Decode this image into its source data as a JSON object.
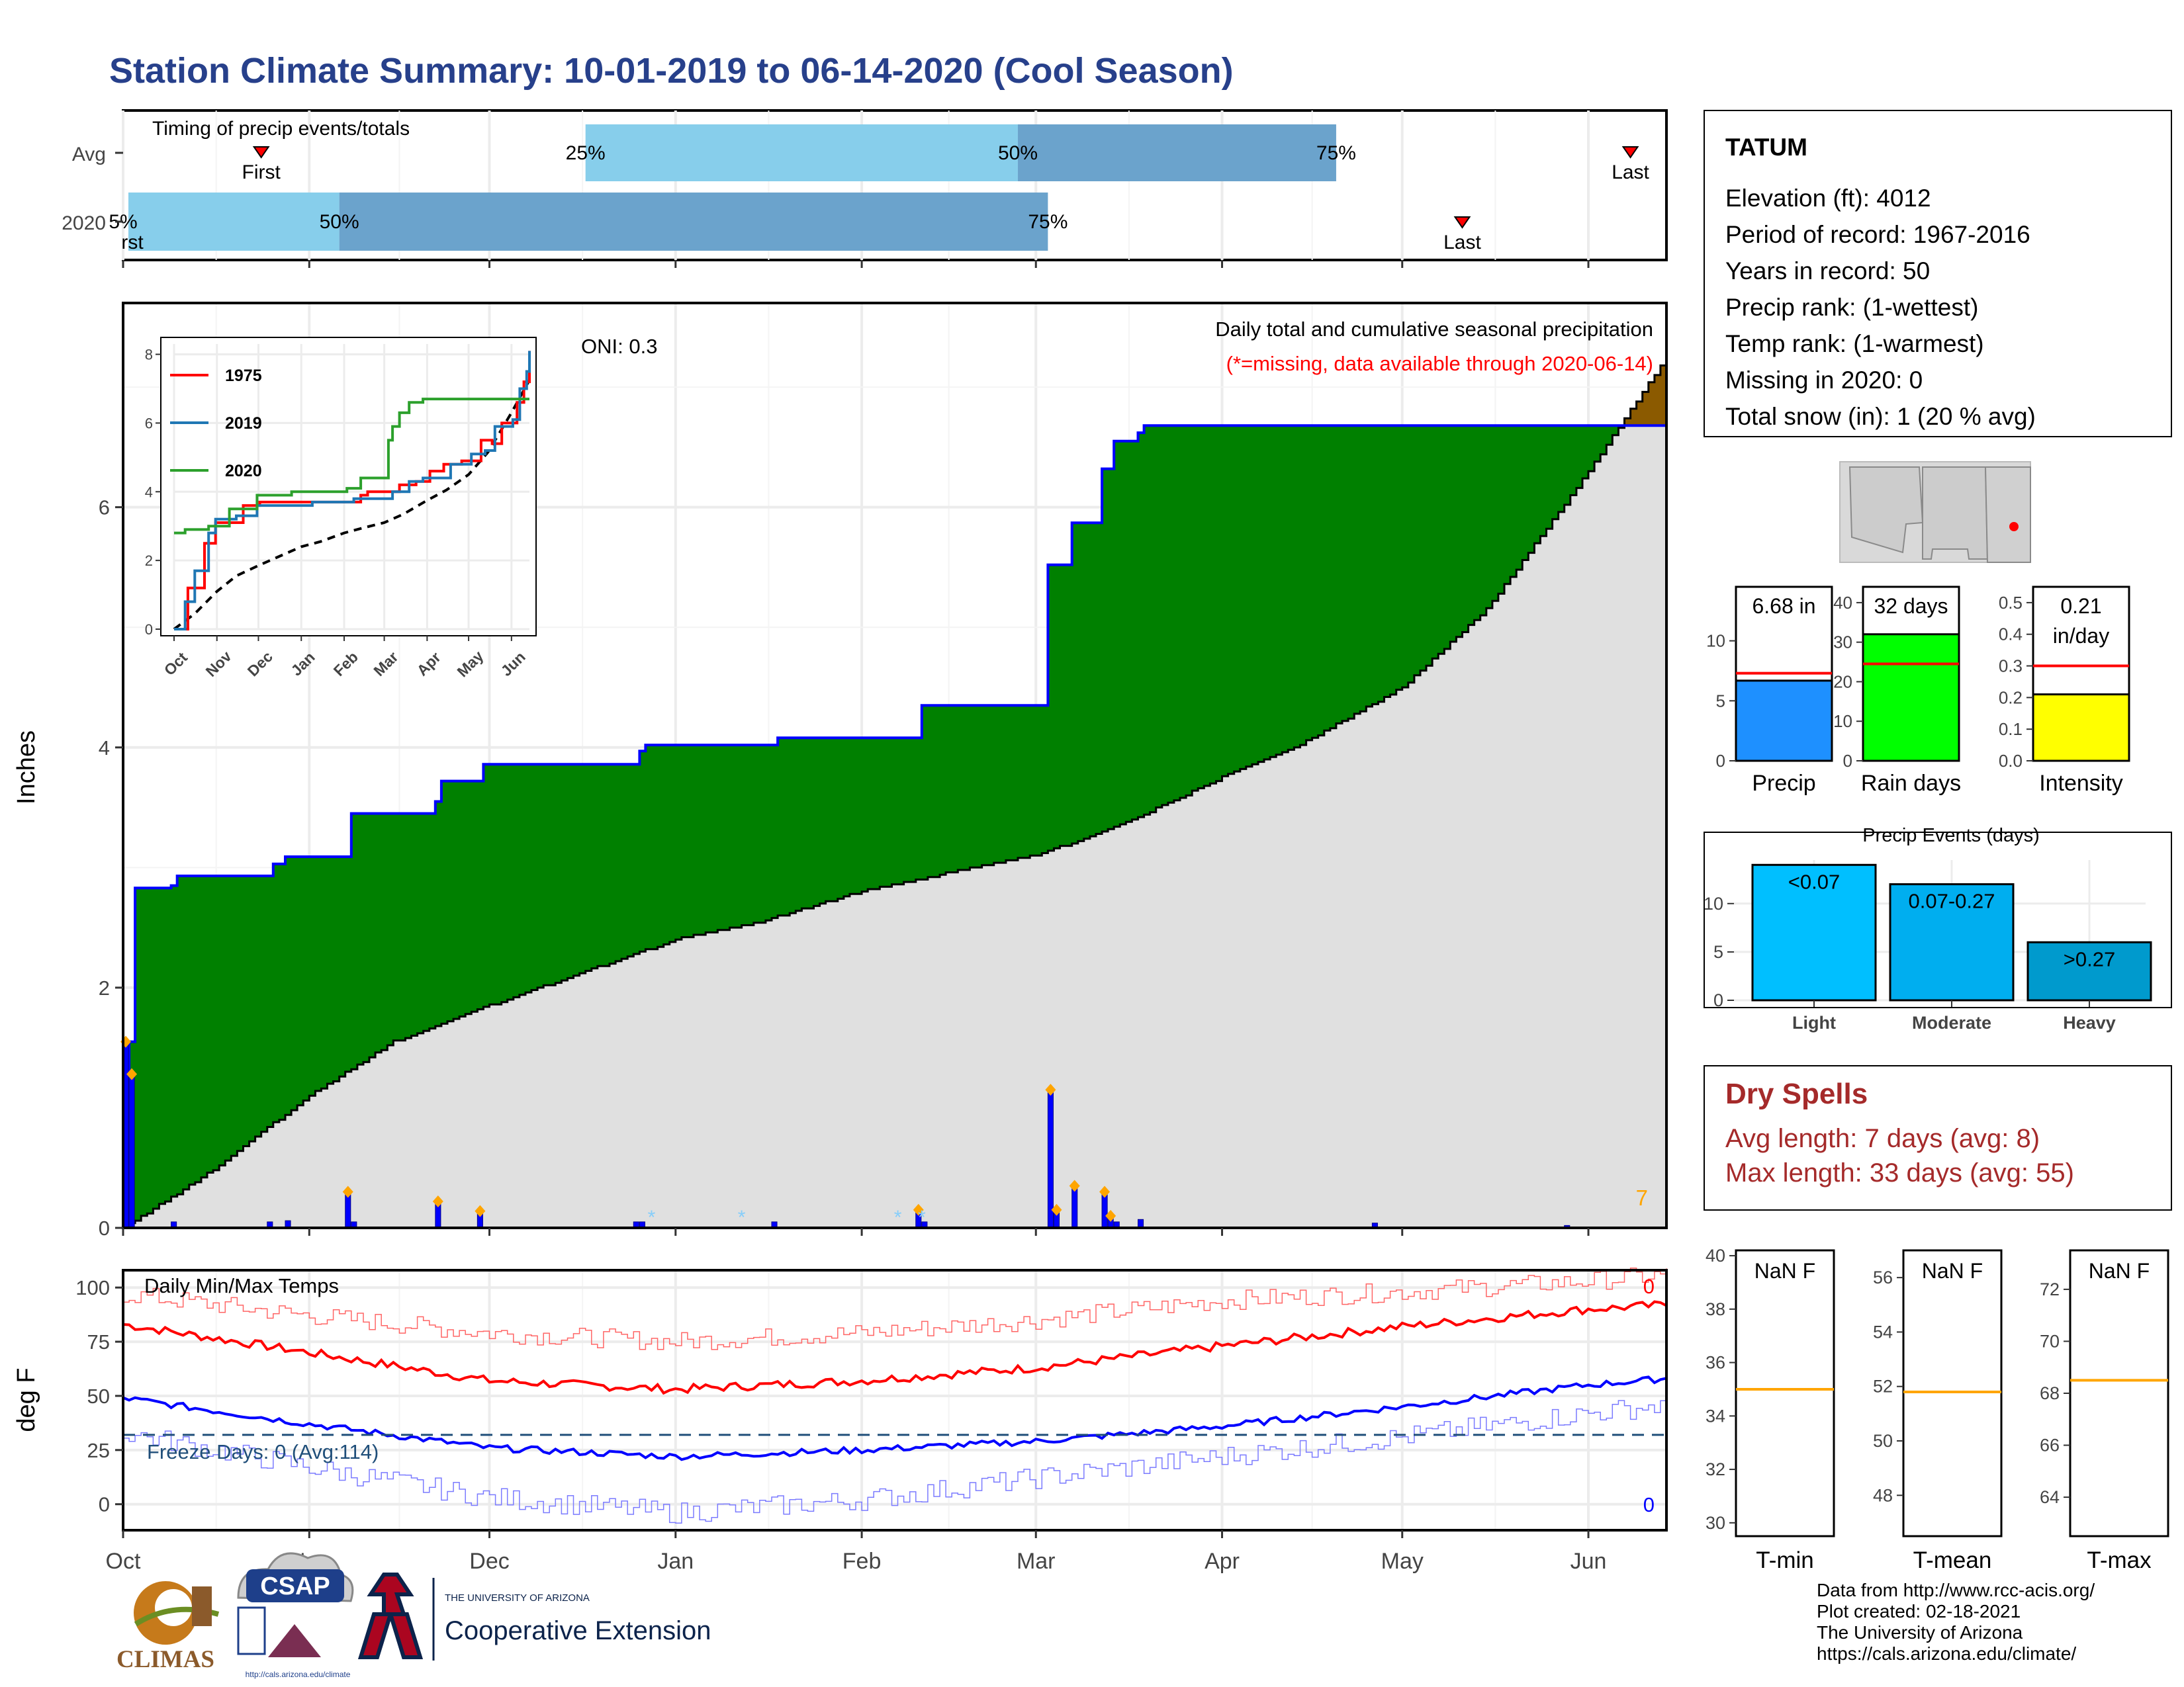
{
  "title": "Station Climate Summary: 10-01-2019 to 06-14-2020 (Cool Season)",
  "colors": {
    "title": "#27408B",
    "green_fill": "#008000",
    "grey_fill": "#e0e0e0",
    "blue_line": "#0000ff",
    "brown": "#8B5A00",
    "light_blue": "#87CEEB",
    "mid_blue": "#6BA3CC",
    "red": "#ff0000",
    "orange": "#FFA500",
    "dry_spell": "#A52A2A"
  },
  "timing_panel": {
    "title": "Timing of precip events/totals",
    "rows": [
      {
        "label": "Avg",
        "first_label": "First",
        "last_label": "Last",
        "first_date": "2019-10-24",
        "last_date": "2020-06-08",
        "p25_date": "2019-12-17",
        "p50_date": "2020-02-27",
        "p75_date": "2020-04-20"
      },
      {
        "label": "2020",
        "first_label": "First",
        "last_label": "Last",
        "first_date": "2019-10-01",
        "last_date": "2020-05-11",
        "p25_date": "2019-10-01",
        "p50_date": "2019-11-06",
        "p75_date": "2020-03-03"
      }
    ],
    "pct_labels": [
      "25%",
      "50%",
      "75%"
    ]
  },
  "precip_panel": {
    "ylabel": "Inches",
    "yticks": [
      0,
      2,
      4,
      6
    ],
    "oni": "ONI: 0.3",
    "title": "Daily total and cumulative seasonal precipitation",
    "missing_note": "(*=missing, data available through 2020-06-14)",
    "count_label": "7"
  },
  "inset": {
    "series": [
      {
        "name": "1975",
        "color": "#ff0000"
      },
      {
        "name": "2019",
        "color": "#1f77b4"
      },
      {
        "name": "2020",
        "color": "#2ca02c"
      }
    ],
    "yticks": [
      0,
      2,
      4,
      6,
      8
    ],
    "xticks": [
      "Oct",
      "Nov",
      "Dec",
      "Jan",
      "Feb",
      "Mar",
      "Apr",
      "May",
      "Jun"
    ]
  },
  "temp_panel": {
    "ylabel": "deg F",
    "title": "Daily Min/Max Temps",
    "yticks": [
      0,
      25,
      50,
      75,
      100
    ],
    "freeze_label": "Freeze Days: 0 (Avg:114)",
    "max_count": "0",
    "min_count": "0"
  },
  "month_ticks": [
    "Oct",
    "Nov",
    "Dec",
    "Jan",
    "Feb",
    "Mar",
    "Apr",
    "May",
    "Jun"
  ],
  "station": {
    "name": "TATUM",
    "lines": [
      "Elevation (ft): 4012",
      "Period of record: 1967-2016",
      "Years in record: 50",
      "Precip rank:  (1-wettest)",
      "Temp rank:  (1-warmest)",
      "Missing in 2020: 0",
      "Total snow (in): 1 (20 % avg)"
    ]
  },
  "summary_bars": [
    {
      "label": "Precip",
      "value": 6.68,
      "avg": 7.3,
      "ymax": 14.5,
      "yticks": [
        0,
        5,
        10
      ],
      "text": [
        "6.68 in"
      ],
      "color": "#1E90FF"
    },
    {
      "label": "Rain days",
      "value": 32,
      "avg": 24.5,
      "ymax": 44,
      "yticks": [
        0,
        10,
        20,
        30,
        40
      ],
      "text": [
        "32 days"
      ],
      "color": "#00FF00"
    },
    {
      "label": "Intensity",
      "value": 0.21,
      "avg": 0.3,
      "ymax": 0.55,
      "yticks": [
        "0.0",
        "0.1",
        "0.2",
        "0.3",
        "0.4",
        "0.5"
      ],
      "text": [
        "0.21",
        "in/day"
      ],
      "color": "#FFFF00"
    }
  ],
  "events_panel": {
    "title": "Precip Events (days)",
    "yticks": [
      0,
      5,
      10
    ],
    "bars": [
      {
        "label": "Light",
        "range": "<0.07",
        "value": 14,
        "color": "#00BFFF"
      },
      {
        "label": "Moderate",
        "range": "0.07-0.27",
        "value": 12,
        "color": "#00AEEF"
      },
      {
        "label": "Heavy",
        "range": ">0.27",
        "value": 6,
        "color": "#009ACD"
      }
    ]
  },
  "dry_spells": {
    "title": "Dry Spells",
    "avg_line": "Avg length: 7 days (avg: 8)",
    "max_line": "Max length: 33 days (avg: 55)"
  },
  "temp_summary": [
    {
      "label": "T-min",
      "text": "NaN F",
      "avg": 35,
      "yticks": [
        30,
        32,
        34,
        36,
        38,
        40
      ],
      "ymin": 29.5,
      "ymax": 40.2
    },
    {
      "label": "T-mean",
      "text": "NaN F",
      "avg": 51.8,
      "yticks": [
        48,
        50,
        52,
        54,
        56
      ],
      "ymin": 46.5,
      "ymax": 57
    },
    {
      "label": "T-max",
      "text": "NaN F",
      "avg": 68.5,
      "yticks": [
        64,
        66,
        68,
        70,
        72
      ],
      "ymin": 62.5,
      "ymax": 73.5
    }
  ],
  "logos": {
    "climas": "CLIMAS",
    "csap": "CSAP",
    "csap_url": "http://cals.arizona.edu/climate",
    "ua_small": "THE UNIVERSITY OF ARIZONA",
    "ua_big": "Cooperative Extension"
  },
  "footer": [
    "Data from http://www.rcc-acis.org/",
    "Plot created: 02-18-2021",
    "The University of Arizona",
    "https://cals.arizona.edu/climate/"
  ],
  "chart_data": [
    {
      "type": "area",
      "title": "Daily total and cumulative seasonal precipitation",
      "ylabel": "Inches",
      "ylim": [
        0,
        7.7
      ],
      "x_range": [
        "2019-10-01",
        "2020-06-14"
      ],
      "series": [
        {
          "name": "2020 cumulative",
          "points": [
            [
              "2019-10-01",
              0
            ],
            [
              "2019-10-02",
              1.55
            ],
            [
              "2019-10-03",
              2.83
            ],
            [
              "2019-10-09",
              2.85
            ],
            [
              "2019-10-10",
              2.93
            ],
            [
              "2019-10-25",
              2.93
            ],
            [
              "2019-10-26",
              3.03
            ],
            [
              "2019-10-28",
              3.09
            ],
            [
              "2019-11-07",
              3.09
            ],
            [
              "2019-11-08",
              3.45
            ],
            [
              "2019-11-22",
              3.55
            ],
            [
              "2019-11-23",
              3.72
            ],
            [
              "2019-11-29",
              3.72
            ],
            [
              "2019-11-30",
              3.86
            ],
            [
              "2019-12-25",
              3.86
            ],
            [
              "2019-12-26",
              3.97
            ],
            [
              "2019-12-27",
              4.02
            ],
            [
              "2020-01-17",
              4.02
            ],
            [
              "2020-01-18",
              4.08
            ],
            [
              "2020-02-10",
              4.08
            ],
            [
              "2020-02-11",
              4.35
            ],
            [
              "2020-03-02",
              4.35
            ],
            [
              "2020-03-03",
              5.52
            ],
            [
              "2020-03-06",
              5.52
            ],
            [
              "2020-03-07",
              5.87
            ],
            [
              "2020-03-11",
              5.87
            ],
            [
              "2020-03-12",
              6.32
            ],
            [
              "2020-03-14",
              6.55
            ],
            [
              "2020-03-18",
              6.62
            ],
            [
              "2020-03-19",
              6.68
            ],
            [
              "2020-06-14",
              6.68
            ]
          ]
        },
        {
          "name": "Average cumulative",
          "points": [
            [
              "2019-10-01",
              0
            ],
            [
              "2019-10-15",
              0.45
            ],
            [
              "2019-11-01",
              1.1
            ],
            [
              "2019-11-15",
              1.55
            ],
            [
              "2019-12-01",
              1.85
            ],
            [
              "2019-12-15",
              2.1
            ],
            [
              "2020-01-01",
              2.4
            ],
            [
              "2020-01-15",
              2.55
            ],
            [
              "2020-02-01",
              2.8
            ],
            [
              "2020-02-15",
              2.95
            ],
            [
              "2020-03-01",
              3.1
            ],
            [
              "2020-03-15",
              3.35
            ],
            [
              "2020-04-01",
              3.75
            ],
            [
              "2020-04-15",
              4.05
            ],
            [
              "2020-05-01",
              4.5
            ],
            [
              "2020-05-15",
              5.15
            ],
            [
              "2020-06-01",
              6.3
            ],
            [
              "2020-06-14",
              7.25
            ]
          ]
        },
        {
          "name": "Daily precip",
          "points": [
            [
              "2019-10-01",
              1.55
            ],
            [
              "2019-10-02",
              1.28
            ],
            [
              "2019-10-09",
              0.05
            ],
            [
              "2019-10-25",
              0.05
            ],
            [
              "2019-10-28",
              0.06
            ],
            [
              "2019-11-07",
              0.3
            ],
            [
              "2019-11-08",
              0.05
            ],
            [
              "2019-11-22",
              0.22
            ],
            [
              "2019-11-29",
              0.14
            ],
            [
              "2019-12-25",
              0.05
            ],
            [
              "2019-12-26",
              0.05
            ],
            [
              "2020-01-17",
              0.05
            ],
            [
              "2020-02-10",
              0.15
            ],
            [
              "2020-02-11",
              0.05
            ],
            [
              "2020-03-03",
              1.15
            ],
            [
              "2020-03-04",
              0.15
            ],
            [
              "2020-03-07",
              0.35
            ],
            [
              "2020-03-12",
              0.3
            ],
            [
              "2020-03-13",
              0.1
            ],
            [
              "2020-03-14",
              0.05
            ],
            [
              "2020-03-18",
              0.07
            ],
            [
              "2020-04-26",
              0.04
            ],
            [
              "2020-05-28",
              0.02
            ]
          ]
        }
      ]
    },
    {
      "type": "line",
      "title": "Daily Min/Max Temps",
      "ylabel": "deg F",
      "ylim": [
        -12,
        108
      ],
      "series": [
        {
          "name": "Avg max",
          "points": [
            [
              "2019-10-01",
              83
            ],
            [
              "2019-11-01",
              70
            ],
            [
              "2019-12-01",
              57
            ],
            [
              "2020-01-01",
              53
            ],
            [
              "2020-02-01",
              57
            ],
            [
              "2020-03-01",
              63
            ],
            [
              "2020-04-01",
              73
            ],
            [
              "2020-05-01",
              82
            ],
            [
              "2020-06-01",
              90
            ],
            [
              "2020-06-14",
              92
            ]
          ]
        },
        {
          "name": "Record max",
          "points": [
            [
              "2019-10-01",
              97
            ],
            [
              "2019-11-01",
              87
            ],
            [
              "2019-12-01",
              79
            ],
            [
              "2020-01-01",
              75
            ],
            [
              "2020-02-01",
              79
            ],
            [
              "2020-03-01",
              85
            ],
            [
              "2020-04-01",
              94
            ],
            [
              "2020-05-01",
              98
            ],
            [
              "2020-06-01",
              103
            ],
            [
              "2020-06-14",
              106
            ]
          ]
        },
        {
          "name": "Avg min",
          "points": [
            [
              "2019-10-01",
              49
            ],
            [
              "2019-11-01",
              37
            ],
            [
              "2019-12-01",
              26
            ],
            [
              "2020-01-01",
              22
            ],
            [
              "2020-02-01",
              25
            ],
            [
              "2020-03-01",
              29
            ],
            [
              "2020-04-01",
              36
            ],
            [
              "2020-05-01",
              45
            ],
            [
              "2020-06-01",
              55
            ],
            [
              "2020-06-14",
              58
            ]
          ]
        },
        {
          "name": "Record min",
          "points": [
            [
              "2019-10-01",
              33
            ],
            [
              "2019-11-01",
              17
            ],
            [
              "2019-12-01",
              3
            ],
            [
              "2020-01-01",
              -4
            ],
            [
              "2020-02-01",
              2
            ],
            [
              "2020-03-01",
              12
            ],
            [
              "2020-04-01",
              22
            ],
            [
              "2020-05-01",
              31
            ],
            [
              "2020-06-01",
              42
            ],
            [
              "2020-06-14",
              46
            ]
          ]
        },
        {
          "name": "Freeze line",
          "points": [
            [
              "2019-10-01",
              32
            ],
            [
              "2020-06-14",
              32
            ]
          ]
        }
      ]
    },
    {
      "type": "bar",
      "categories": [
        "Light",
        "Moderate",
        "Heavy"
      ],
      "values": [
        14,
        12,
        6
      ],
      "title": "Precip Events (days)",
      "ylim": [
        0,
        14.5
      ]
    }
  ]
}
